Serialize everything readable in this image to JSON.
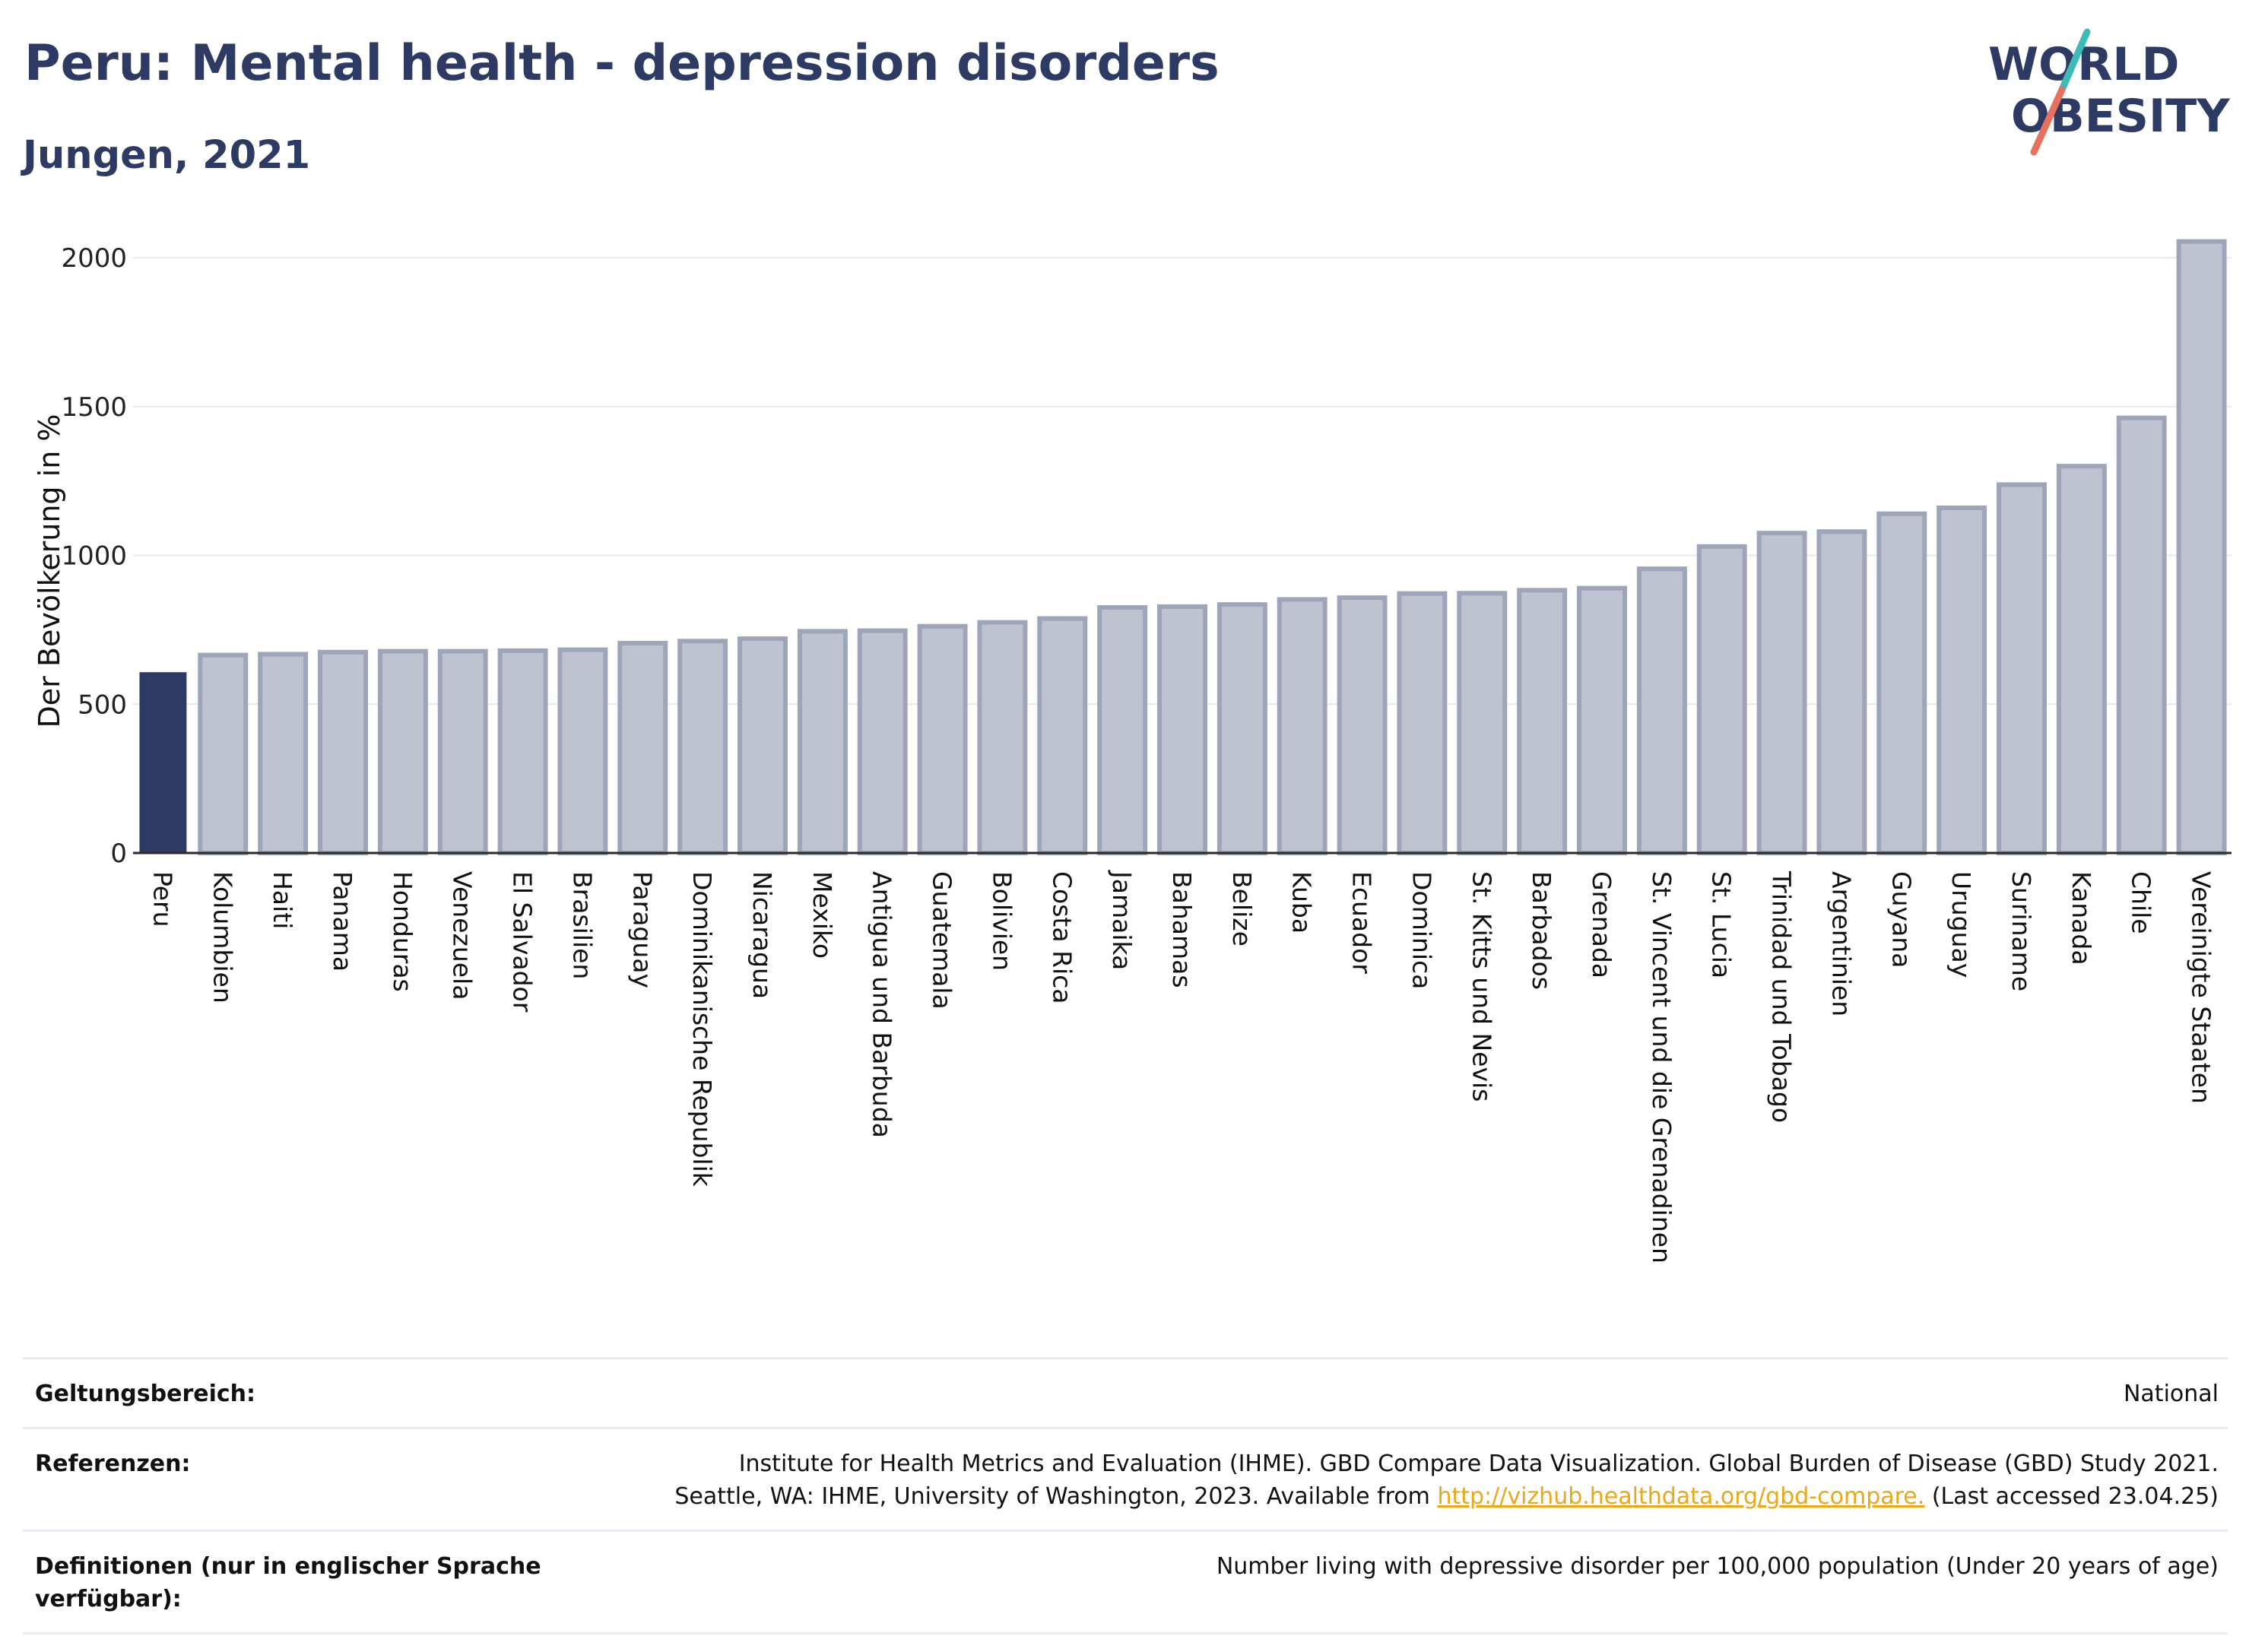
{
  "header": {
    "title": "Peru: Mental health - depression disorders",
    "subtitle": "Jungen, 2021"
  },
  "logo": {
    "line1": "WORLD",
    "line2": "OBESITY"
  },
  "colors": {
    "highlight_bar": "#2d3a63",
    "other_bar_fill": "#bfc3d0",
    "other_bar_stroke": "#9ea4b9",
    "grid": "#e6e9f0",
    "title": "#2d3a63",
    "logo_teal": "#3cbcb4",
    "logo_coral": "#e8705f"
  },
  "chart_data": {
    "type": "bar",
    "title": "",
    "xlabel": "",
    "ylabel": "Der Bevölkerung in %",
    "ylim": [
      0,
      2100
    ],
    "yticks": [
      0,
      500,
      1000,
      1500,
      2000
    ],
    "grid": true,
    "highlight": "Peru",
    "categories": [
      "Peru",
      "Kolumbien",
      "Haiti",
      "Panama",
      "Honduras",
      "Venezuela",
      "El Salvador",
      "Brasilien",
      "Paraguay",
      "Dominikanische Republik",
      "Nicaragua",
      "Mexiko",
      "Antigua und Barbuda",
      "Guatemala",
      "Bolivien",
      "Costa Rica",
      "Jamaika",
      "Bahamas",
      "Belize",
      "Kuba",
      "Ecuador",
      "Dominica",
      "St. Kitts und Nevis",
      "Barbados",
      "Grenada",
      "St. Vincent und die Grenadinen",
      "St. Lucia",
      "Trinidad und Tobago",
      "Argentinien",
      "Guyana",
      "Uruguay",
      "Suriname",
      "Kanada",
      "Chile",
      "Vereinigte Staaten"
    ],
    "values": [
      605,
      665,
      668,
      675,
      678,
      678,
      680,
      683,
      705,
      712,
      720,
      745,
      747,
      762,
      775,
      788,
      825,
      828,
      835,
      852,
      858,
      872,
      873,
      883,
      890,
      955,
      1030,
      1075,
      1080,
      1140,
      1160,
      1238,
      1300,
      1462,
      2055
    ]
  },
  "info": {
    "scope_label": "Geltungsbereich:",
    "scope_value": "National",
    "refs_label": "Referenzen:",
    "refs_line1": "Institute for Health Metrics and Evaluation (IHME). GBD Compare Data Visualization. Global Burden of Disease (GBD) Study 2021.",
    "refs_line2_pre": "Seattle, WA: IHME, University of Washington, 2023. Available from ",
    "refs_link": "http://vizhub.healthdata.org/gbd-compare.",
    "refs_line2_post": " (Last accessed 23.04.25)",
    "def_label": "Definitionen (nur in englischer Sprache verfügbar):",
    "def_value": "Number living with depressive disorder per 100,000 population (Under 20 years of age)"
  }
}
